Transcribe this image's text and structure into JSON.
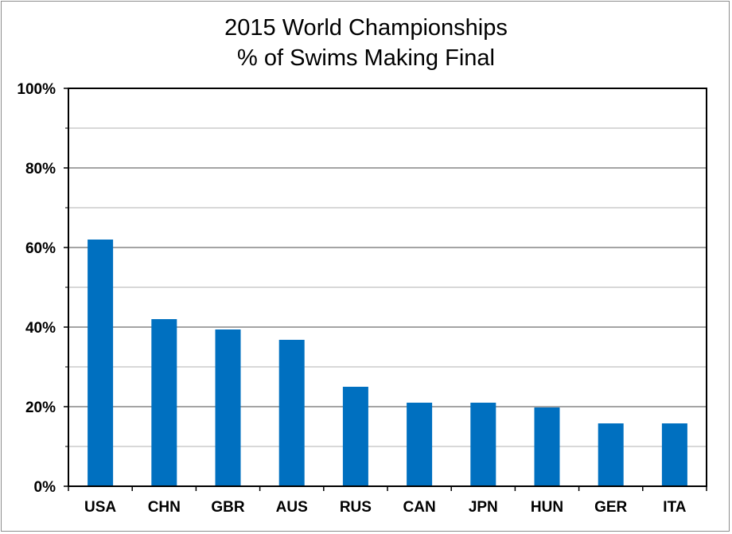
{
  "chart_data": {
    "type": "bar",
    "title_lines": [
      "2015 World Championships",
      "% of Swims Making Final"
    ],
    "categories": [
      "USA",
      "CHN",
      "GBR",
      "AUS",
      "RUS",
      "CAN",
      "JPN",
      "HUN",
      "GER",
      "ITA"
    ],
    "values": [
      62,
      42,
      39.4,
      36.8,
      25,
      21,
      21,
      19.8,
      15.8,
      15.8
    ],
    "ylim": [
      0,
      100
    ],
    "y_ticks": [
      "0%",
      "20%",
      "40%",
      "60%",
      "80%",
      "100%"
    ],
    "y_tick_values": [
      0,
      20,
      40,
      60,
      80,
      100
    ],
    "minor_grid_values": [
      10,
      30,
      50,
      70,
      90
    ],
    "grid": true,
    "legend": "none",
    "colors": {
      "bar": "#0070C0",
      "major_grid": "#868686",
      "minor_grid": "#b0b0b0",
      "axis": "#000000"
    }
  }
}
